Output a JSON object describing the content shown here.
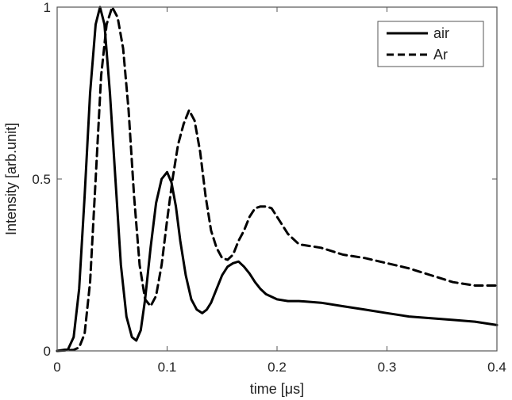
{
  "chart_data": {
    "type": "line",
    "title": "",
    "xlabel": "time [μs]",
    "ylabel": "Intensity [arb.unit]",
    "xlim": [
      0,
      0.4
    ],
    "ylim": [
      0,
      1
    ],
    "x_ticks": [
      0,
      0.1,
      0.2,
      0.3,
      0.4
    ],
    "x_tick_labels": [
      "0",
      "0.1",
      "0.2",
      "0.3",
      "0.4"
    ],
    "y_ticks": [
      0,
      0.5,
      1
    ],
    "y_tick_labels": [
      "0",
      "0.5",
      "1"
    ],
    "grid": false,
    "legend_position": "top-right",
    "series": [
      {
        "name": "air",
        "style": "solid",
        "color": "#000000",
        "x": [
          0,
          0.01,
          0.015,
          0.02,
          0.025,
          0.03,
          0.035,
          0.039,
          0.043,
          0.048,
          0.053,
          0.058,
          0.063,
          0.068,
          0.072,
          0.076,
          0.08,
          0.085,
          0.09,
          0.095,
          0.1,
          0.104,
          0.108,
          0.112,
          0.117,
          0.122,
          0.127,
          0.132,
          0.136,
          0.14,
          0.145,
          0.15,
          0.155,
          0.16,
          0.165,
          0.17,
          0.175,
          0.18,
          0.185,
          0.19,
          0.2,
          0.21,
          0.22,
          0.24,
          0.26,
          0.28,
          0.3,
          0.32,
          0.34,
          0.36,
          0.38,
          0.4
        ],
        "y": [
          0,
          0.005,
          0.04,
          0.18,
          0.45,
          0.75,
          0.95,
          1.0,
          0.95,
          0.75,
          0.5,
          0.25,
          0.1,
          0.04,
          0.03,
          0.06,
          0.15,
          0.3,
          0.43,
          0.5,
          0.52,
          0.49,
          0.42,
          0.32,
          0.22,
          0.15,
          0.12,
          0.11,
          0.12,
          0.14,
          0.18,
          0.22,
          0.245,
          0.255,
          0.26,
          0.245,
          0.225,
          0.2,
          0.18,
          0.165,
          0.15,
          0.145,
          0.145,
          0.14,
          0.13,
          0.12,
          0.11,
          0.1,
          0.095,
          0.09,
          0.085,
          0.075
        ]
      },
      {
        "name": "Ar",
        "style": "dashed",
        "color": "#000000",
        "x": [
          0,
          0.015,
          0.02,
          0.025,
          0.03,
          0.035,
          0.04,
          0.045,
          0.05,
          0.055,
          0.06,
          0.065,
          0.07,
          0.075,
          0.08,
          0.085,
          0.09,
          0.095,
          0.1,
          0.105,
          0.11,
          0.115,
          0.12,
          0.125,
          0.13,
          0.135,
          0.14,
          0.145,
          0.15,
          0.155,
          0.16,
          0.165,
          0.17,
          0.175,
          0.18,
          0.185,
          0.19,
          0.195,
          0.2,
          0.21,
          0.22,
          0.24,
          0.26,
          0.28,
          0.3,
          0.32,
          0.34,
          0.36,
          0.38,
          0.4
        ],
        "y": [
          0,
          0.003,
          0.01,
          0.05,
          0.2,
          0.5,
          0.8,
          0.95,
          1.0,
          0.97,
          0.88,
          0.7,
          0.45,
          0.25,
          0.15,
          0.13,
          0.16,
          0.25,
          0.38,
          0.5,
          0.6,
          0.66,
          0.7,
          0.67,
          0.58,
          0.45,
          0.35,
          0.3,
          0.27,
          0.265,
          0.28,
          0.32,
          0.35,
          0.39,
          0.415,
          0.42,
          0.42,
          0.415,
          0.39,
          0.34,
          0.31,
          0.3,
          0.28,
          0.27,
          0.255,
          0.24,
          0.22,
          0.2,
          0.19,
          0.19
        ]
      }
    ]
  }
}
